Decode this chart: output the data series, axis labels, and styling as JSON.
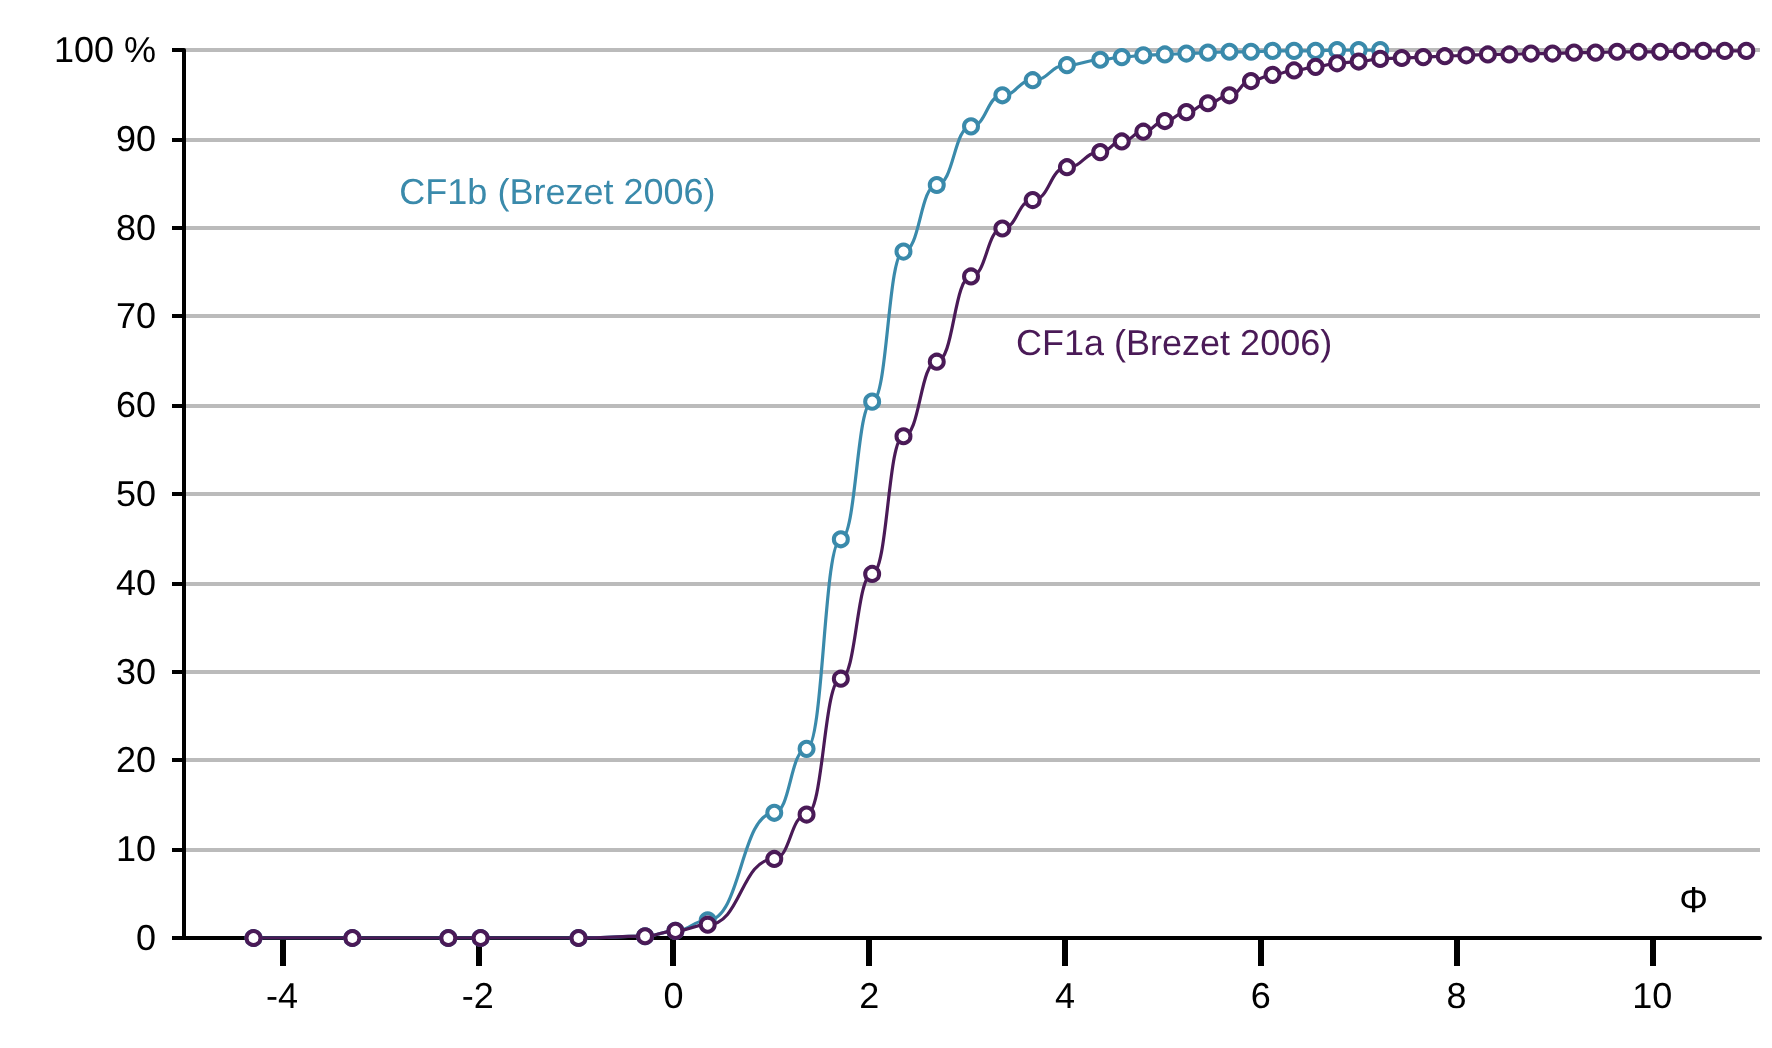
{
  "chart_data": {
    "type": "line",
    "xlabel": "Φ",
    "x": [
      -4.29,
      -3.28,
      -2.3,
      -1.97,
      -0.97,
      -0.29,
      0.02,
      0.35,
      1.03,
      1.36,
      1.71,
      2.03,
      2.35,
      2.69,
      3.04,
      3.36,
      3.67,
      4.02,
      4.36,
      4.58,
      4.8,
      5.02,
      5.24,
      5.46,
      5.68,
      5.9,
      6.12,
      6.34,
      6.56,
      6.78,
      7.0,
      7.22,
      7.44,
      7.66,
      7.88,
      8.1,
      8.32,
      8.54,
      8.76,
      8.98,
      9.2,
      9.42,
      9.64,
      9.86,
      10.08,
      10.3,
      10.52,
      10.74,
      10.96
    ],
    "series": [
      {
        "name": "CF1b (Brezet 2006)",
        "color": "#3a8aab",
        "values": [
          0,
          0,
          0,
          0,
          0,
          0.2,
          0.8,
          2.0,
          14.1,
          21.3,
          44.9,
          60.4,
          77.3,
          84.8,
          91.4,
          94.9,
          96.6,
          98.3,
          98.9,
          99.2,
          99.4,
          99.5,
          99.6,
          99.7,
          99.8,
          99.8,
          99.9,
          99.9,
          99.9,
          100,
          100,
          100,
          null,
          null,
          null,
          null,
          null,
          null,
          null,
          null,
          null,
          null,
          null,
          null,
          null,
          null,
          null,
          null,
          null
        ]
      },
      {
        "name": "CF1a (Brezet 2006)",
        "color": "#4a1a57",
        "values": [
          0,
          0,
          0,
          0,
          0,
          0.2,
          0.8,
          1.5,
          8.9,
          13.9,
          29.2,
          41.0,
          56.5,
          64.9,
          74.5,
          79.9,
          83.1,
          86.8,
          88.5,
          89.7,
          90.8,
          92.0,
          93.0,
          94.0,
          94.9,
          96.5,
          97.2,
          97.7,
          98.1,
          98.5,
          98.7,
          99.0,
          99.1,
          99.2,
          99.3,
          99.4,
          99.5,
          99.5,
          99.6,
          99.6,
          99.7,
          99.7,
          99.8,
          99.8,
          99.8,
          99.9,
          99.9,
          99.9,
          99.9
        ]
      }
    ],
    "xlim": [
      -5,
      11.1
    ],
    "xticks": [
      -4,
      -2,
      0,
      2,
      4,
      6,
      8,
      10
    ],
    "ylim": [
      0,
      100
    ],
    "yticks": [
      0,
      10,
      20,
      30,
      40,
      50,
      60,
      70,
      80,
      90,
      {
        "value": 100,
        "label": "100 %"
      }
    ],
    "grid": "y",
    "marker": "circle",
    "line_style": "solid",
    "legend": false
  }
}
